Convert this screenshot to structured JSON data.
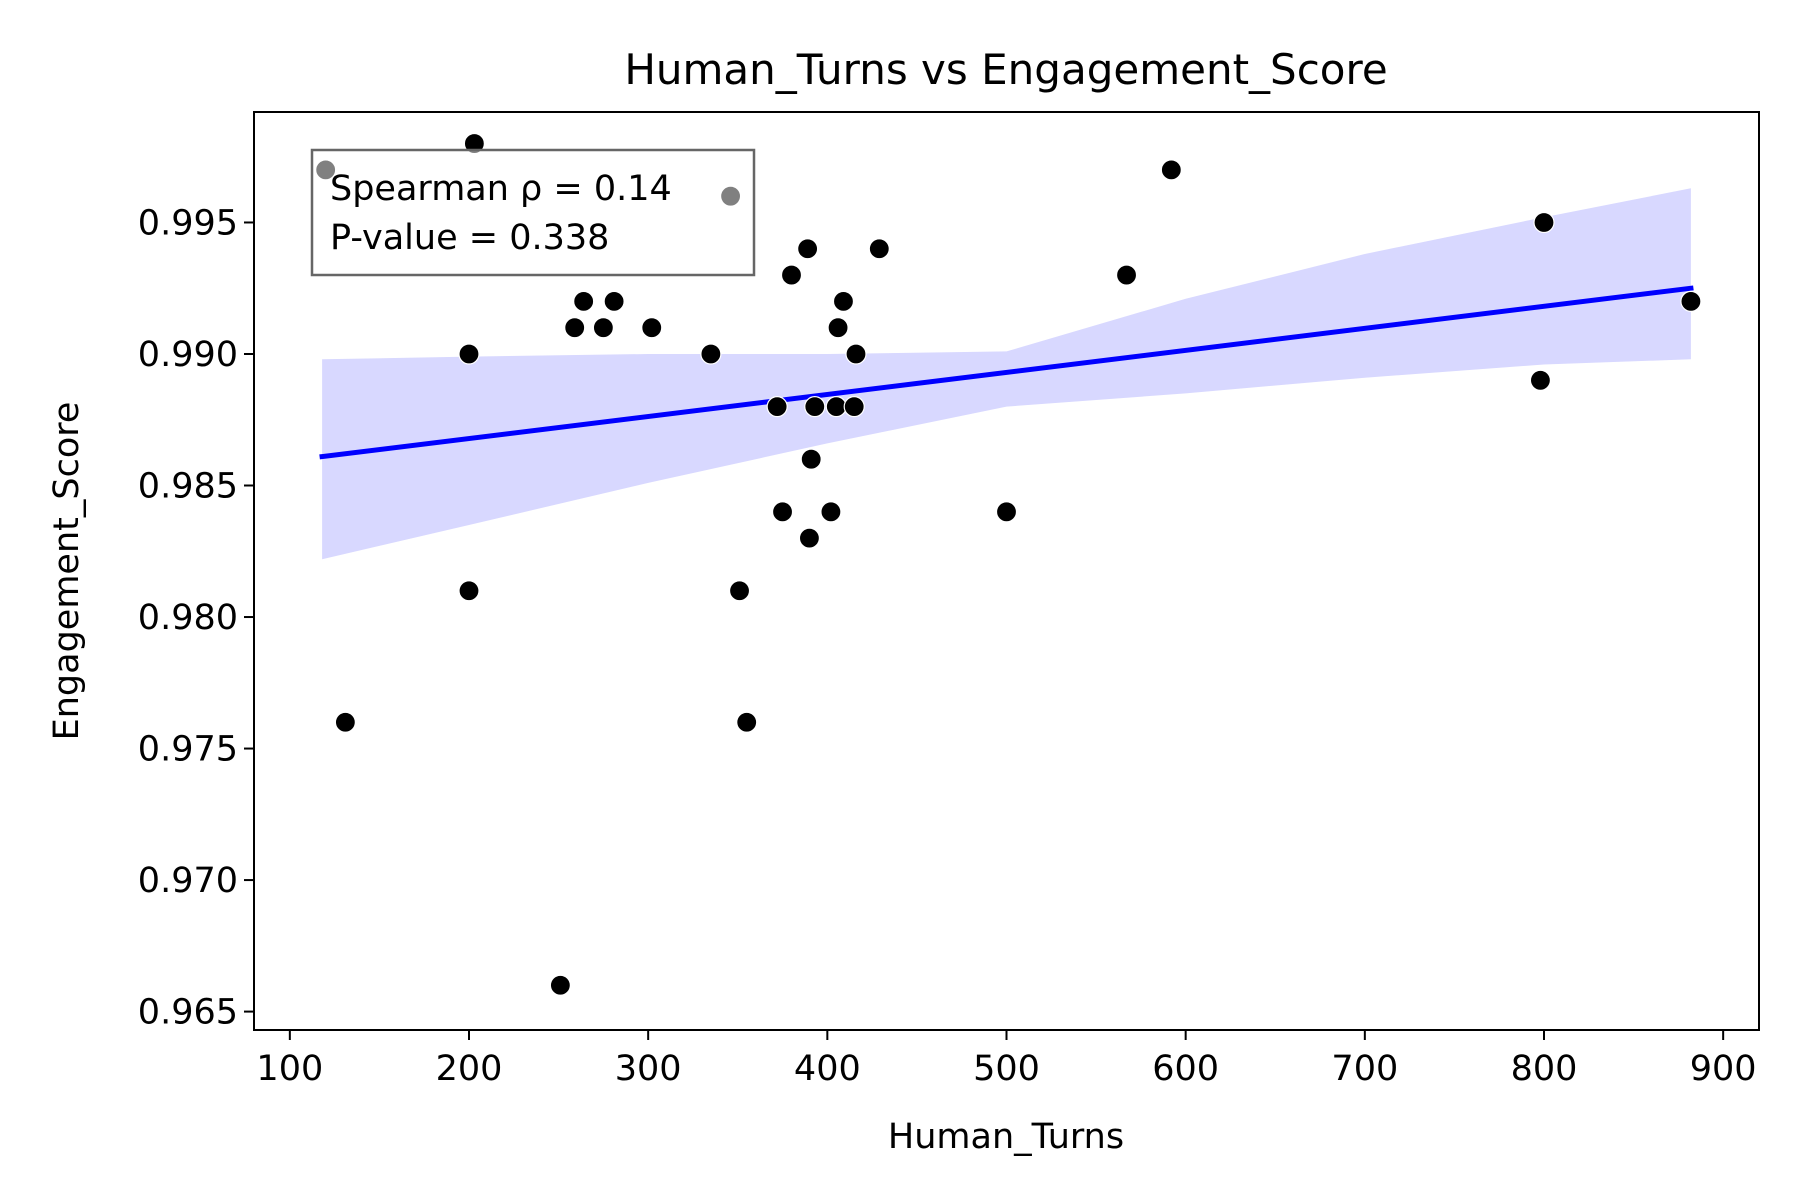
{
  "chart_data": {
    "type": "scatter",
    "title": "Human_Turns vs Engagement_Score",
    "xlabel": "Human_Turns",
    "ylabel": "Engagement_Score",
    "xlim": [
      80,
      920
    ],
    "ylim": [
      0.9643,
      0.9992
    ],
    "x_ticks": [
      100,
      200,
      300,
      400,
      500,
      600,
      700,
      800,
      900
    ],
    "y_ticks": [
      0.965,
      0.97,
      0.975,
      0.98,
      0.985,
      0.99,
      0.995
    ],
    "x_tick_labels": [
      "100",
      "200",
      "300",
      "400",
      "500",
      "600",
      "700",
      "800",
      "900"
    ],
    "y_tick_labels": [
      "0.965",
      "0.970",
      "0.975",
      "0.980",
      "0.985",
      "0.990",
      "0.995"
    ],
    "grid": false,
    "legend": "none",
    "point_color": "#000000",
    "line_color": "#0000ff",
    "band_color": "#d8d8ff",
    "stats_box": {
      "position": "top-left",
      "line1": "Spearman ρ = 0.14",
      "line2": "P-value = 0.338"
    },
    "series": [
      {
        "kind": "points",
        "x": [
          120,
          131,
          200,
          200,
          203,
          251,
          259,
          264,
          275,
          281,
          302,
          335,
          346,
          351,
          355,
          372,
          375,
          380,
          389,
          390,
          391,
          393,
          402,
          405,
          406,
          409,
          415,
          416,
          429,
          500,
          567,
          592,
          798,
          800,
          882
        ],
        "y": [
          0.997,
          0.976,
          0.99,
          0.981,
          0.998,
          0.966,
          0.991,
          0.992,
          0.991,
          0.992,
          0.991,
          0.99,
          0.996,
          0.981,
          0.976,
          0.988,
          0.984,
          0.993,
          0.994,
          0.983,
          0.986,
          0.988,
          0.984,
          0.988,
          0.991,
          0.992,
          0.988,
          0.99,
          0.994,
          0.984,
          0.993,
          0.997,
          0.989,
          0.995,
          0.992
        ]
      },
      {
        "kind": "regression",
        "x": [
          118,
          882
        ],
        "y": [
          0.9861,
          0.9925
        ]
      },
      {
        "kind": "confidence_band",
        "x": [
          118,
          200,
          300,
          400,
          500,
          600,
          700,
          800,
          882
        ],
        "upper": [
          0.9898,
          0.9899,
          0.99,
          0.99,
          0.9901,
          0.9921,
          0.9938,
          0.9952,
          0.9963
        ],
        "lower": [
          0.9822,
          0.9835,
          0.9851,
          0.9866,
          0.988,
          0.9885,
          0.9891,
          0.9896,
          0.9898
        ]
      }
    ]
  }
}
